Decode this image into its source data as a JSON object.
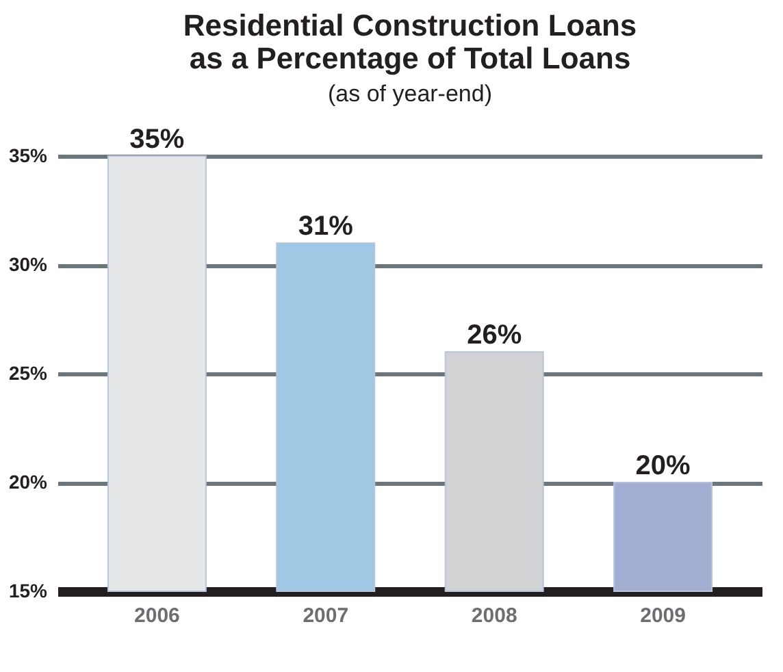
{
  "chart_data": {
    "type": "bar",
    "title": [
      "Residential Construction Loans",
      "as a Percentage of Total Loans"
    ],
    "subtitle": "(as of year-end)",
    "categories": [
      "2006",
      "2007",
      "2008",
      "2009"
    ],
    "values": [
      35,
      31,
      26,
      20
    ],
    "value_labels": [
      "35%",
      "31%",
      "26%",
      "20%"
    ],
    "colors": [
      "#e6e7e9",
      "#a0c8e4",
      "#d1d2d4",
      "#a3aed2"
    ],
    "ylim": [
      15,
      35
    ],
    "yticks": [
      {
        "value": 15,
        "label": "15%"
      },
      {
        "value": 20,
        "label": "20%"
      },
      {
        "value": 25,
        "label": "25%"
      },
      {
        "value": 30,
        "label": "30%"
      },
      {
        "value": 35,
        "label": "35%"
      }
    ],
    "grid": "y"
  }
}
